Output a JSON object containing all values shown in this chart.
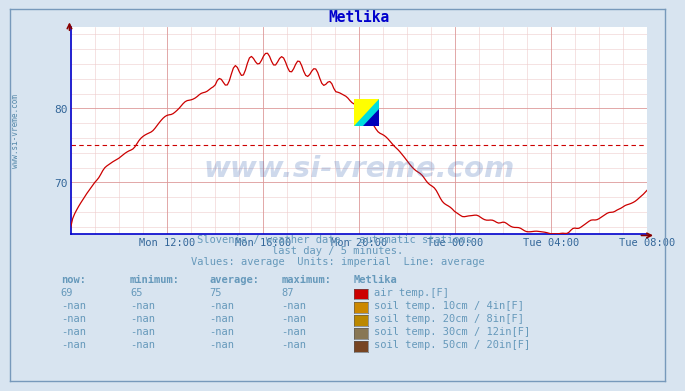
{
  "title": "Metlika",
  "title_color": "#0000cc",
  "bg_color": "#d8e4f0",
  "plot_bg_color": "#ffffff",
  "line_color": "#cc0000",
  "avg_line_color": "#cc0000",
  "avg_line_value": 75,
  "ylim": [
    63,
    91
  ],
  "yticks": [
    70,
    80
  ],
  "axis_color": "#0000cc",
  "arrow_color": "#880000",
  "tick_color": "#336699",
  "subtitle_lines": [
    "Slovenia / weather data - automatic stations.",
    "last day / 5 minutes.",
    "Values: average  Units: imperial  Line: average"
  ],
  "subtitle_color": "#6699bb",
  "watermark_text": "www.si-vreme.com",
  "watermark_color": "#2255aa",
  "watermark_alpha": 0.22,
  "legend_title": "Metlika",
  "legend_items": [
    {
      "label": "air temp.[F]",
      "color": "#cc0000"
    },
    {
      "label": "soil temp. 10cm / 4in[F]",
      "color": "#cc8800"
    },
    {
      "label": "soil temp. 20cm / 8in[F]",
      "color": "#bb8800"
    },
    {
      "label": "soil temp. 30cm / 12in[F]",
      "color": "#887755"
    },
    {
      "label": "soil temp. 50cm / 20in[F]",
      "color": "#774422"
    }
  ],
  "table_headers": [
    "now:",
    "minimum:",
    "average:",
    "maximum:"
  ],
  "table_rows": [
    [
      "69",
      "65",
      "75",
      "87"
    ],
    [
      "-nan",
      "-nan",
      "-nan",
      "-nan"
    ],
    [
      "-nan",
      "-nan",
      "-nan",
      "-nan"
    ],
    [
      "-nan",
      "-nan",
      "-nan",
      "-nan"
    ],
    [
      "-nan",
      "-nan",
      "-nan",
      "-nan"
    ]
  ],
  "xtick_labels": [
    "Mon 12:00",
    "Mon 16:00",
    "Mon 20:00",
    "Tue 00:00",
    "Tue 04:00",
    "Tue 08:00"
  ],
  "sidebar_text": "www.si-vreme.com",
  "sidebar_color": "#5588aa",
  "major_grid_color": "#dd9999",
  "minor_grid_color": "#eecccc",
  "major_hgrid_color": "#dd9999",
  "minor_hgrid_color": "#eecccc"
}
